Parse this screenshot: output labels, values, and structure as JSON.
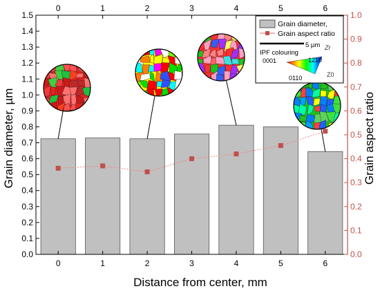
{
  "chart_data": {
    "type": "bar",
    "xlabel": "Distance from center, mm",
    "ylabel_left": "Grain diameter, µm",
    "ylabel_right": "Grain aspect ratio",
    "x": [
      0,
      1,
      2,
      3,
      4,
      5,
      6
    ],
    "x_ticks": [
      "0",
      "1",
      "2",
      "3",
      "4",
      "5",
      "6"
    ],
    "ylim_left": [
      0,
      1.5
    ],
    "ylim_right": [
      0,
      1.0
    ],
    "left_ticks": [
      "0.0",
      "0.1",
      "0.2",
      "0.3",
      "0.4",
      "0.5",
      "0.6",
      "0.7",
      "0.8",
      "0.9",
      "1.0",
      "1.1",
      "1.2",
      "1.3",
      "1.4",
      "1.5"
    ],
    "right_ticks": [
      "0.0",
      "0.1",
      "0.2",
      "0.3",
      "0.4",
      "0.5",
      "0.6",
      "0.7",
      "0.8",
      "0.9",
      "1.0"
    ],
    "series": [
      {
        "name": "Grain diameter,",
        "type": "bar",
        "axis": "left",
        "values": [
          0.725,
          0.73,
          0.725,
          0.755,
          0.81,
          0.8,
          0.645
        ]
      },
      {
        "name": "Grain aspect ratio",
        "type": "line",
        "axis": "right",
        "values": [
          0.36,
          0.37,
          0.345,
          0.4,
          0.42,
          0.455,
          0.515
        ]
      }
    ],
    "colors": {
      "bar_fill": "#c0c0c0",
      "bar_stroke": "#555555",
      "line": "#f08080",
      "marker": "#c0504d",
      "right_axis": "#c0504d",
      "left_axis": "#000000"
    },
    "legend_position": "top-right",
    "legend_extra": {
      "scale_label": "5 µm",
      "ipf_title": "IPF colouring",
      "ipf_axis": "Zr",
      "ipf_corners": [
        "0001",
        "1210",
        "0110"
      ],
      "ipf_z": "Z0"
    },
    "grid": false
  }
}
